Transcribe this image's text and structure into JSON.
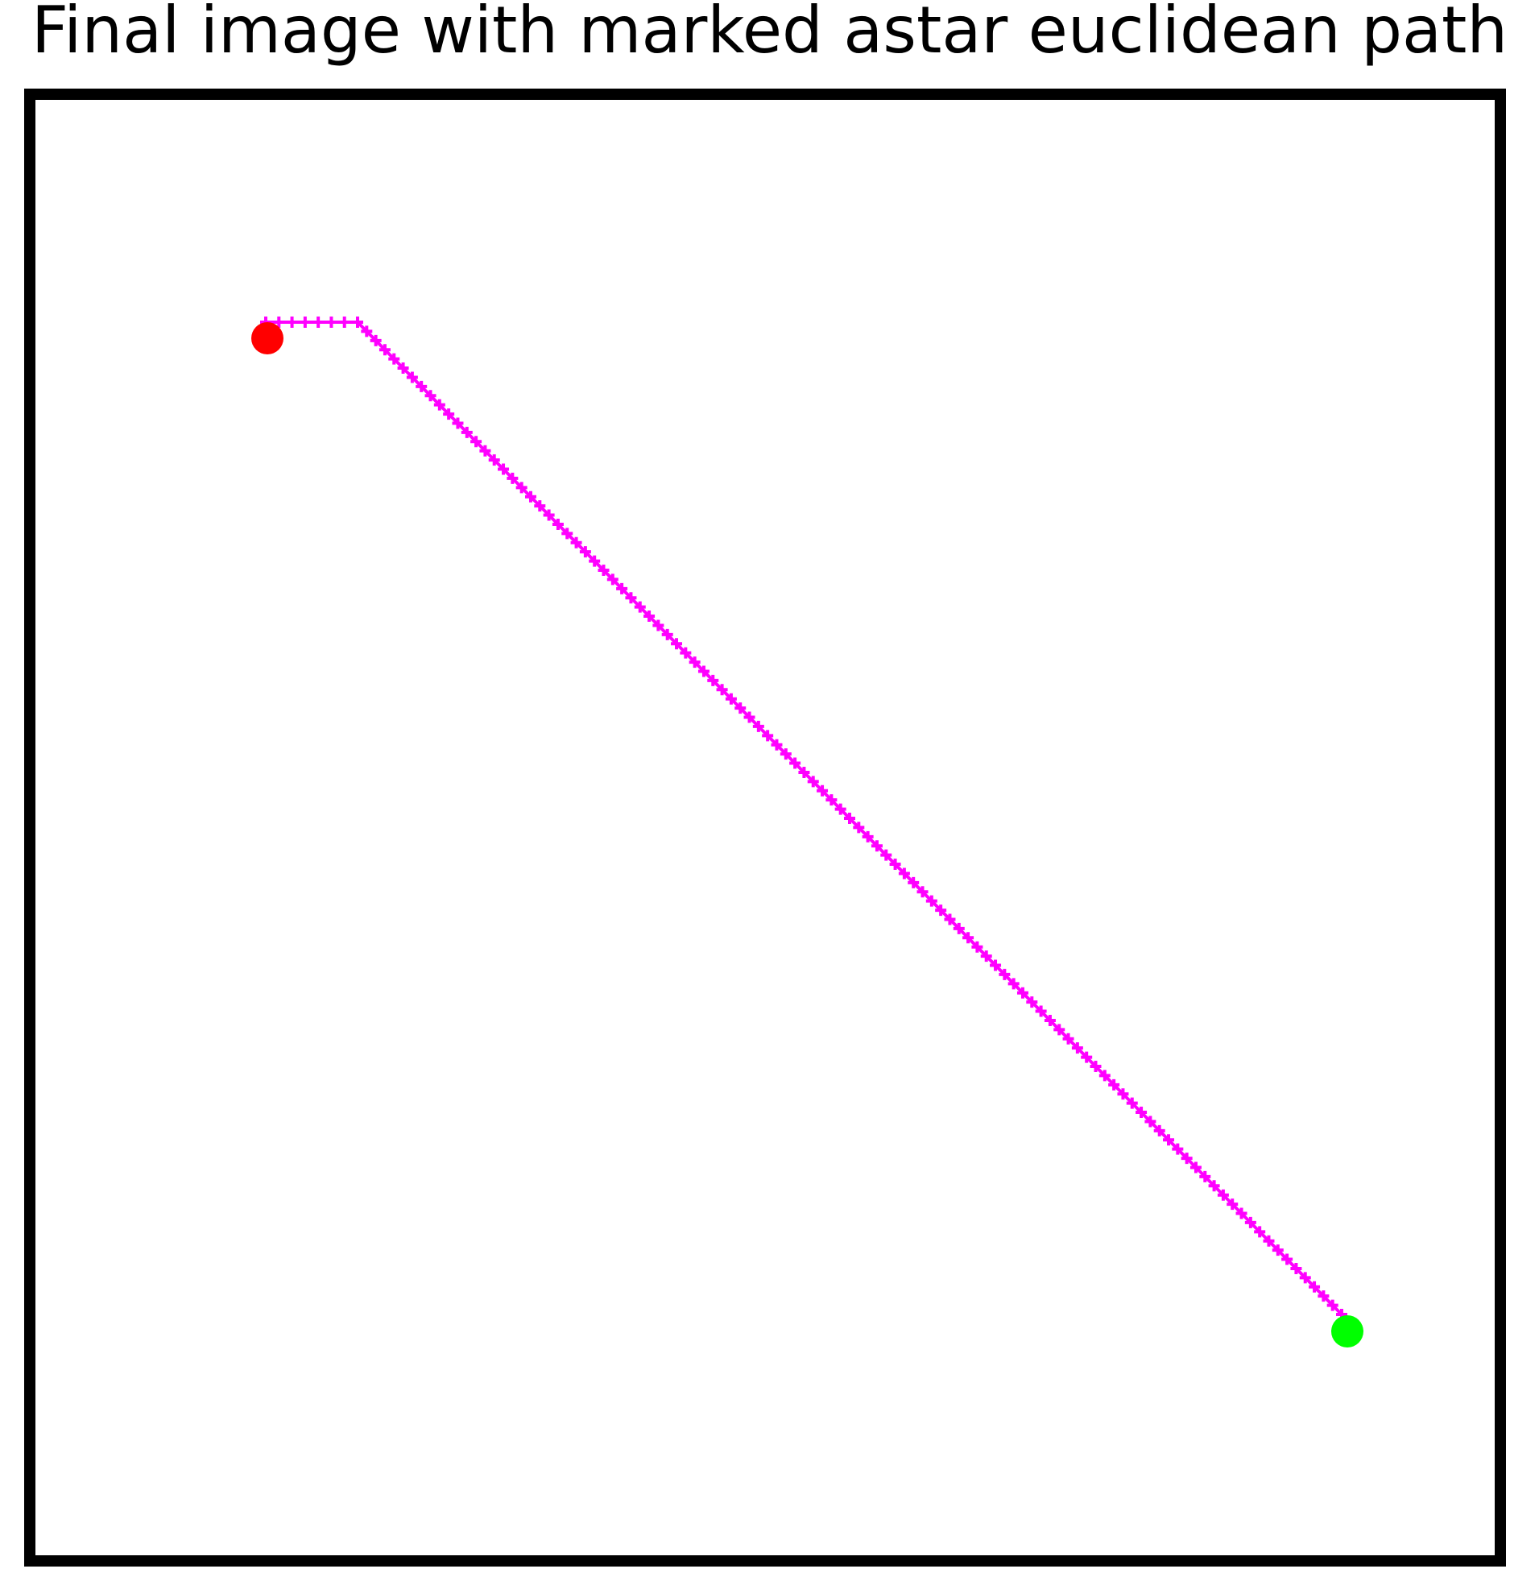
{
  "title": "Final image with marked astar euclidean path",
  "colors": {
    "frame": "#000000",
    "background": "#ffffff",
    "path_marker": "#ff00ff",
    "start_marker": "#ff0000",
    "goal_marker": "#00ff00"
  },
  "path": {
    "marker": "plus-marker",
    "start": "red-dot",
    "goal": "green-dot"
  }
}
